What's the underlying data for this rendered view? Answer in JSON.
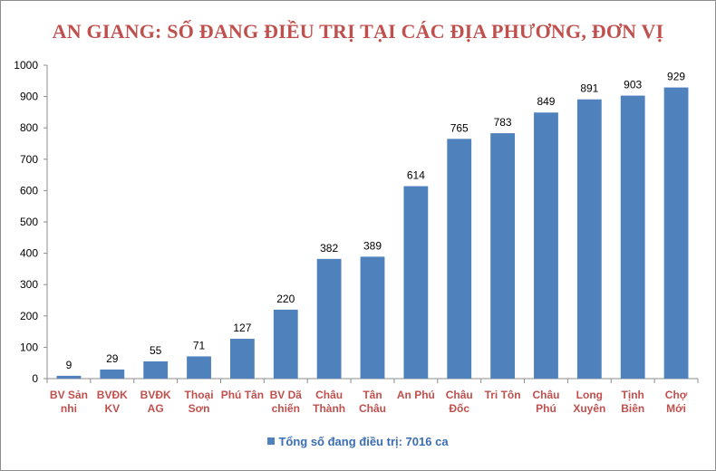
{
  "chart_data": {
    "type": "bar",
    "title": "AN GIANG: SỐ ĐANG ĐIỀU  TRỊ TẠI CÁC ĐỊA PHƯƠNG, ĐƠN VỊ",
    "categories": [
      [
        "BV Sản",
        "nhi"
      ],
      [
        "BVĐK",
        "KV"
      ],
      [
        "BVĐK",
        "AG"
      ],
      [
        "Thoại",
        "Sơn"
      ],
      [
        "Phú Tân"
      ],
      [
        "BV Dã",
        "chiến"
      ],
      [
        "Châu",
        "Thành"
      ],
      [
        "Tân",
        "Châu"
      ],
      [
        "An Phú"
      ],
      [
        "Châu",
        "Đốc"
      ],
      [
        "Tri Tôn"
      ],
      [
        "Châu",
        "Phú"
      ],
      [
        "Long",
        "Xuyên"
      ],
      [
        "Tịnh",
        "Biên"
      ],
      [
        "Chợ",
        "Mới"
      ]
    ],
    "series": [
      {
        "name": "Tổng số  đang điều trị: 7016 ca",
        "values": [
          9,
          29,
          55,
          71,
          127,
          220,
          382,
          389,
          614,
          765,
          783,
          849,
          891,
          903,
          929
        ]
      }
    ],
    "yticks": [
      0,
      100,
      200,
      300,
      400,
      500,
      600,
      700,
      800,
      900,
      1000
    ],
    "ylim": [
      0,
      1000
    ],
    "xlabel": "",
    "ylabel": "",
    "grid": false,
    "legend_position": "bottom",
    "colors": {
      "bar": "#4f81bd",
      "title": "#c0504d",
      "category": "#c0504d",
      "legend_text": "#3a6db3",
      "axis": "#8c8c8c"
    }
  }
}
